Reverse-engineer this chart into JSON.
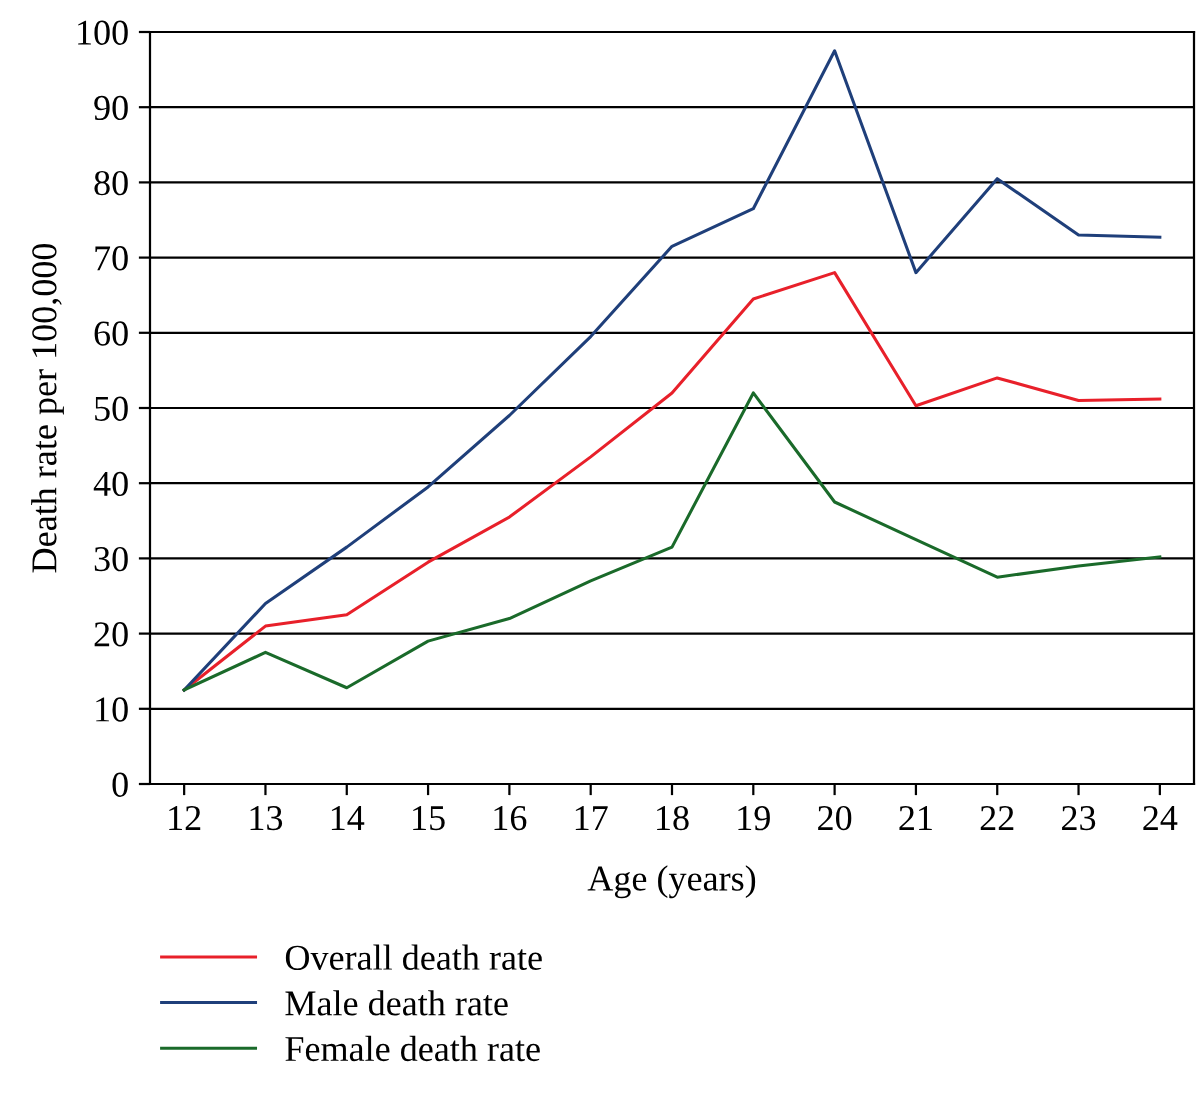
{
  "chart_data": {
    "type": "line",
    "xlabel": "Age (years)",
    "ylabel": "Death rate per 100,000",
    "categories": [
      "12",
      "13",
      "14",
      "15",
      "16",
      "17",
      "18",
      "19",
      "20",
      "21",
      "22",
      "23",
      "24"
    ],
    "series": [
      {
        "name": "Overall death rate",
        "color": "#e8202a",
        "values": [
          12.5,
          21,
          22.5,
          29.5,
          35.5,
          43.5,
          52,
          64.5,
          68,
          50.3,
          54,
          51,
          51.2
        ]
      },
      {
        "name": "Male death rate",
        "color": "#1f3f7a",
        "values": [
          12.5,
          24,
          31.5,
          39.5,
          49,
          59.5,
          71.5,
          76.5,
          97.5,
          68,
          80.5,
          73,
          72.7
        ]
      },
      {
        "name": "Female death rate",
        "color": "#1a6a2a",
        "values": [
          12.5,
          17.5,
          12.8,
          19,
          22,
          27,
          31.5,
          52,
          37.5,
          32.5,
          27.5,
          29,
          30.2
        ]
      }
    ],
    "ylim": [
      0,
      100
    ],
    "yticks": [
      0,
      10,
      20,
      30,
      40,
      50,
      60,
      70,
      80,
      90,
      100
    ],
    "grid": "y",
    "legend": "bottom",
    "marker": "none",
    "line_style": "solid"
  }
}
